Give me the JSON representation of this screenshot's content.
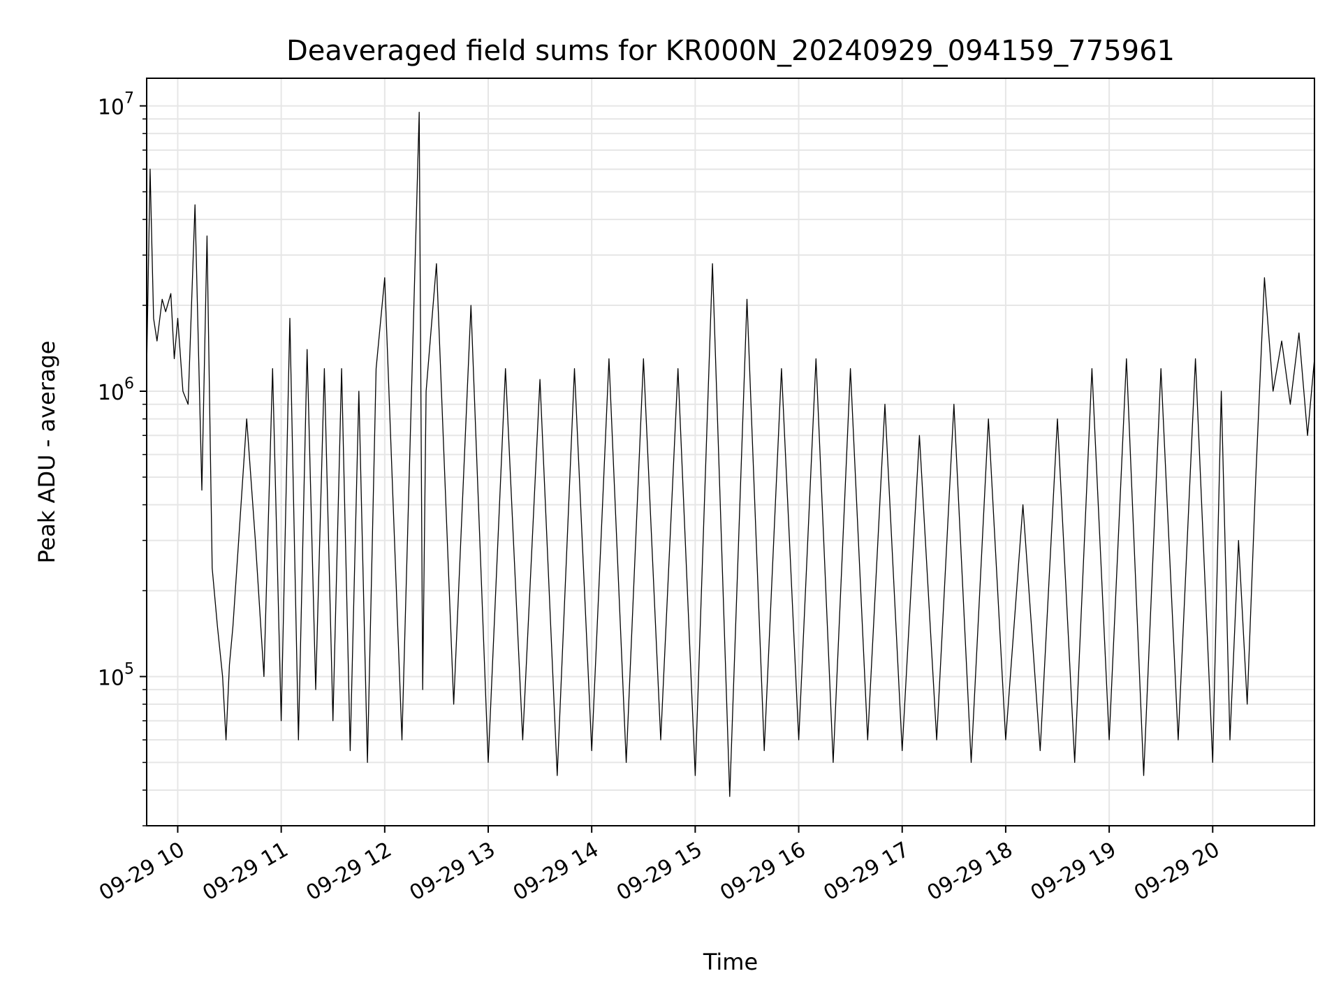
{
  "chart_data": {
    "type": "line",
    "title": "Deaveraged field sums for KR000N_20240929_094159_775961",
    "xlabel": "Time",
    "ylabel": "Peak ADU - average",
    "y_scale": "log",
    "xlim": [
      "2024-09-29 09:42",
      "2024-09-29 20:59"
    ],
    "ylim": [
      30000,
      12500000
    ],
    "grid": true,
    "legend": "none",
    "line_color": "#000000",
    "grid_color": "#e6e6e6",
    "x_ticks": [
      "09-29 10",
      "09-29 11",
      "09-29 12",
      "09-29 13",
      "09-29 14",
      "09-29 15",
      "09-29 16",
      "09-29 17",
      "09-29 18",
      "09-29 19",
      "09-29 20"
    ],
    "y_ticks": [
      {
        "value": 100000,
        "base": "10",
        "exp": "5"
      },
      {
        "value": 1000000,
        "base": "10",
        "exp": "6"
      },
      {
        "value": 10000000,
        "base": "10",
        "exp": "7"
      }
    ],
    "series": [
      {
        "x": [
          "2024-09-29 09:42",
          "2024-09-29 09:44",
          "2024-09-29 09:46",
          "2024-09-29 09:48",
          "2024-09-29 09:51",
          "2024-09-29 09:53",
          "2024-09-29 09:56",
          "2024-09-29 09:58",
          "2024-09-29 10:00",
          "2024-09-29 10:03",
          "2024-09-29 10:06",
          "2024-09-29 10:10",
          "2024-09-29 10:14",
          "2024-09-29 10:17",
          "2024-09-29 10:20",
          "2024-09-29 10:23",
          "2024-09-29 10:26",
          "2024-09-29 10:28",
          "2024-09-29 10:30",
          "2024-09-29 10:32",
          "2024-09-29 10:35",
          "2024-09-29 10:40",
          "2024-09-29 10:45",
          "2024-09-29 10:50",
          "2024-09-29 10:55",
          "2024-09-29 11:00",
          "2024-09-29 11:05",
          "2024-09-29 11:10",
          "2024-09-29 11:15",
          "2024-09-29 11:20",
          "2024-09-29 11:25",
          "2024-09-29 11:30",
          "2024-09-29 11:35",
          "2024-09-29 11:40",
          "2024-09-29 11:45",
          "2024-09-29 11:50",
          "2024-09-29 11:55",
          "2024-09-29 12:00",
          "2024-09-29 12:10",
          "2024-09-29 12:20",
          "2024-09-29 12:22",
          "2024-09-29 12:24",
          "2024-09-29 12:30",
          "2024-09-29 12:40",
          "2024-09-29 12:50",
          "2024-09-29 13:00",
          "2024-09-29 13:10",
          "2024-09-29 13:20",
          "2024-09-29 13:30",
          "2024-09-29 13:40",
          "2024-09-29 13:50",
          "2024-09-29 14:00",
          "2024-09-29 14:10",
          "2024-09-29 14:20",
          "2024-09-29 14:30",
          "2024-09-29 14:40",
          "2024-09-29 14:50",
          "2024-09-29 15:00",
          "2024-09-29 15:10",
          "2024-09-29 15:20",
          "2024-09-29 15:30",
          "2024-09-29 15:40",
          "2024-09-29 15:50",
          "2024-09-29 16:00",
          "2024-09-29 16:10",
          "2024-09-29 16:20",
          "2024-09-29 16:30",
          "2024-09-29 16:40",
          "2024-09-29 16:50",
          "2024-09-29 17:00",
          "2024-09-29 17:10",
          "2024-09-29 17:20",
          "2024-09-29 17:30",
          "2024-09-29 17:40",
          "2024-09-29 17:50",
          "2024-09-29 18:00",
          "2024-09-29 18:10",
          "2024-09-29 18:20",
          "2024-09-29 18:30",
          "2024-09-29 18:40",
          "2024-09-29 18:50",
          "2024-09-29 19:00",
          "2024-09-29 19:10",
          "2024-09-29 19:20",
          "2024-09-29 19:30",
          "2024-09-29 19:40",
          "2024-09-29 19:50",
          "2024-09-29 20:00",
          "2024-09-29 20:05",
          "2024-09-29 20:10",
          "2024-09-29 20:15",
          "2024-09-29 20:20",
          "2024-09-29 20:25",
          "2024-09-29 20:30",
          "2024-09-29 20:35",
          "2024-09-29 20:40",
          "2024-09-29 20:45",
          "2024-09-29 20:50",
          "2024-09-29 20:55",
          "2024-09-29 20:59"
        ],
        "y": [
          1200000,
          6000000,
          1800000,
          1500000,
          2100000,
          1900000,
          2200000,
          1300000,
          1800000,
          1000000,
          900000,
          4500000,
          450000,
          3500000,
          240000,
          150000,
          100000,
          60000,
          110000,
          150000,
          280000,
          800000,
          300000,
          100000,
          1200000,
          70000,
          1800000,
          60000,
          1400000,
          90000,
          1200000,
          70000,
          1200000,
          55000,
          1000000,
          50000,
          1200000,
          2500000,
          60000,
          9500000,
          90000,
          1000000,
          2800000,
          80000,
          2000000,
          50000,
          1200000,
          60000,
          1100000,
          45000,
          1200000,
          55000,
          1300000,
          50000,
          1300000,
          60000,
          1200000,
          45000,
          2800000,
          38000,
          2100000,
          55000,
          1200000,
          60000,
          1300000,
          50000,
          1200000,
          60000,
          900000,
          55000,
          700000,
          60000,
          900000,
          50000,
          800000,
          60000,
          400000,
          55000,
          800000,
          50000,
          1200000,
          60000,
          1300000,
          45000,
          1200000,
          60000,
          1300000,
          50000,
          1000000,
          60000,
          300000,
          80000,
          500000,
          2500000,
          1000000,
          1500000,
          900000,
          1600000,
          700000,
          1300000
        ]
      }
    ]
  }
}
